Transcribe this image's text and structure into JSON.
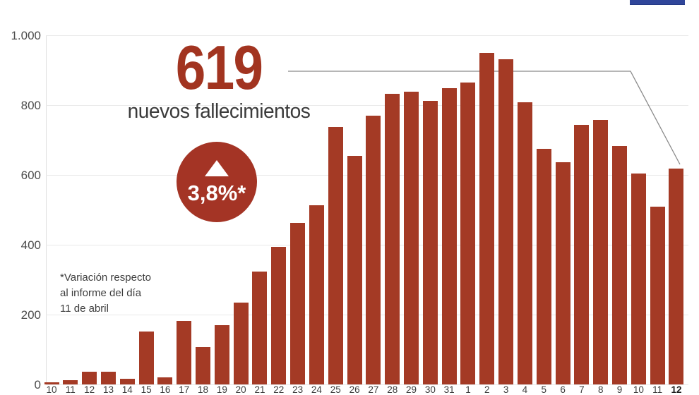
{
  "headline": {
    "number": "619",
    "subtitle": "nuevos fallecimientos"
  },
  "badge": {
    "value": "3,8%*",
    "direction": "up",
    "icon": "triangle-up-icon",
    "color": "#a43425"
  },
  "footnote": {
    "line1": "*Variación respecto",
    "line2": "al informe del día",
    "line3": "11 de abril"
  },
  "logo_bar": {
    "color": "#30469a"
  },
  "colors": {
    "bar": "#a43a25",
    "headline_red": "#a23420",
    "annotation_line": "#8a8a8a",
    "gridline": "#e9e9e9",
    "text_dark": "#3b3b3b"
  },
  "chart_data": {
    "type": "bar",
    "title": "619 nuevos fallecimientos",
    "xlabel": "",
    "ylabel": "",
    "ylim": [
      0,
      1000
    ],
    "grid": true,
    "legend": "none",
    "ytick_labels": [
      "1.000",
      "800",
      "600",
      "400",
      "200",
      "0"
    ],
    "ytick_values": [
      1000,
      800,
      600,
      400,
      200,
      0
    ],
    "categories": [
      "10",
      "11",
      "12",
      "13",
      "14",
      "15",
      "16",
      "17",
      "18",
      "19",
      "20",
      "21",
      "22",
      "23",
      "24",
      "25",
      "26",
      "27",
      "28",
      "29",
      "30",
      "31",
      "1",
      "2",
      "3",
      "4",
      "5",
      "6",
      "7",
      "8",
      "9",
      "10",
      "11",
      "12"
    ],
    "values": [
      7,
      12,
      37,
      36,
      16,
      152,
      21,
      182,
      107,
      169,
      235,
      324,
      394,
      462,
      514,
      738,
      655,
      769,
      832,
      838,
      812,
      849,
      864,
      950,
      932,
      809,
      674,
      637,
      743,
      757,
      683,
      605,
      510,
      619
    ],
    "last_category_bold": true,
    "annotation": {
      "text": "619 nuevos fallecimientos",
      "points_to_category_index": 33
    }
  }
}
